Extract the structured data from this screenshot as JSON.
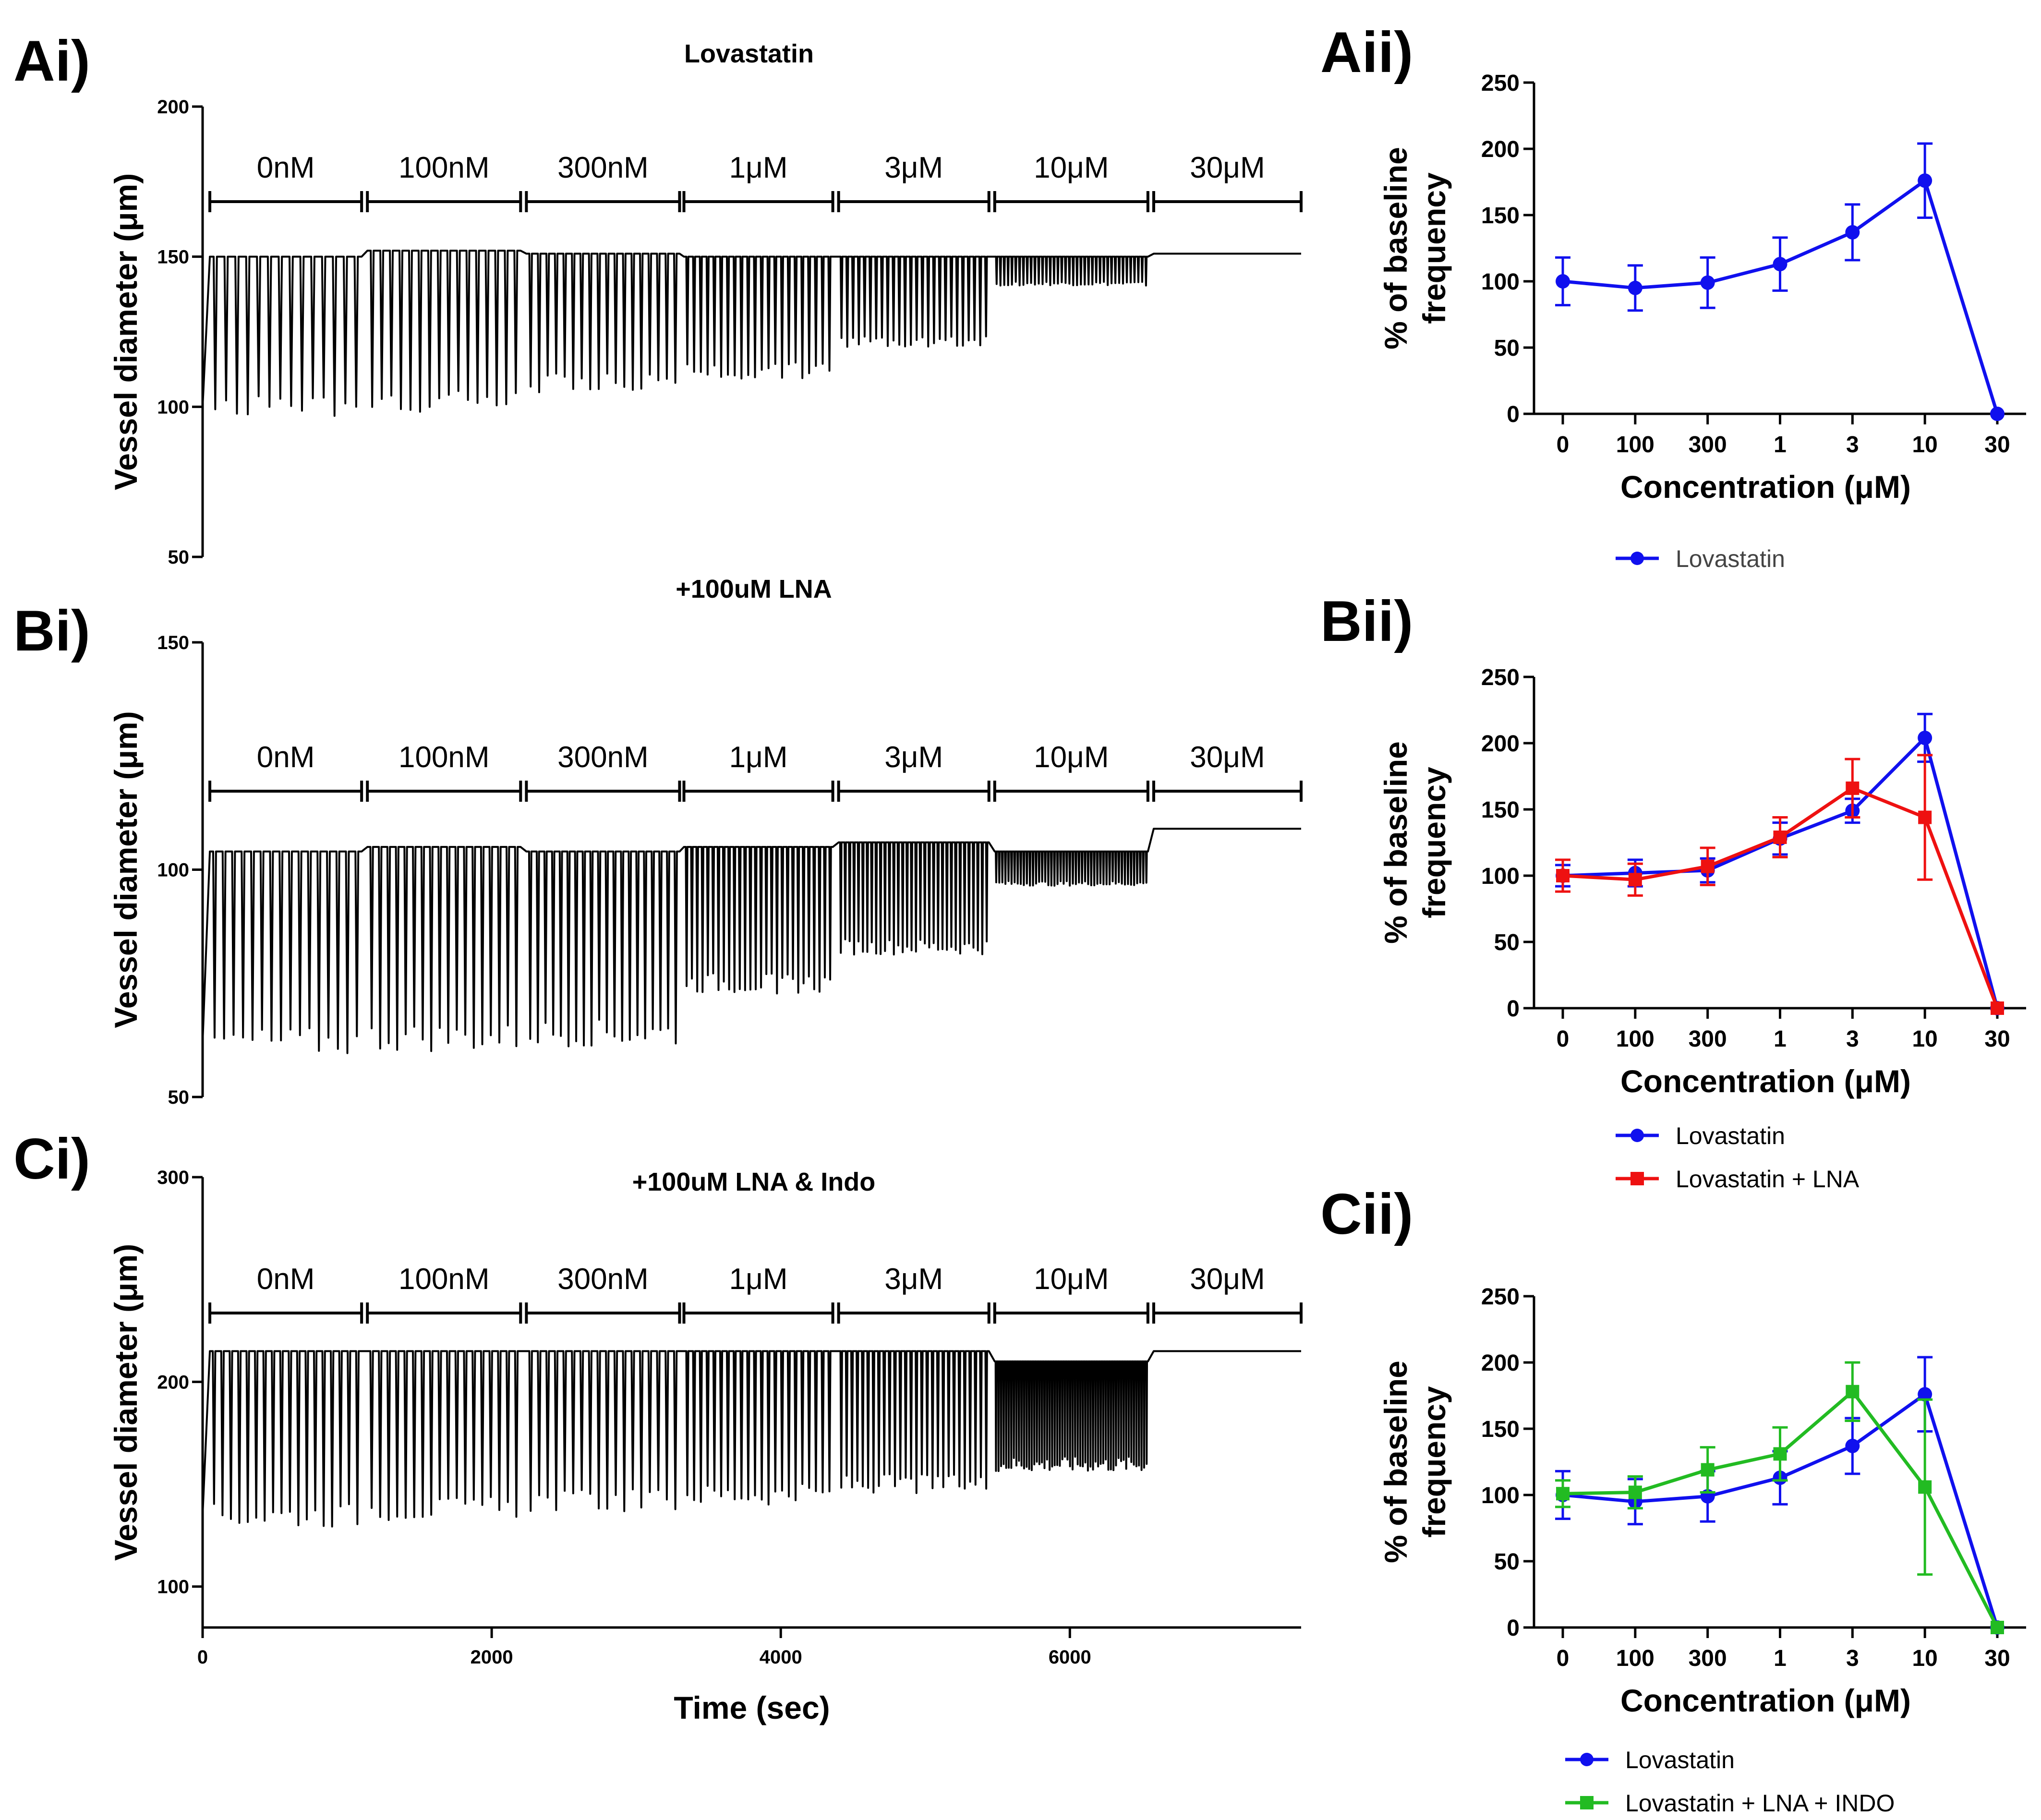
{
  "panels": {
    "ai": "Ai)",
    "aii": "Aii)",
    "bi": "Bi)",
    "bii": "Bii)",
    "ci": "Ci)",
    "cii": "Cii)"
  },
  "colors": {
    "lovastatin": "#1010ee",
    "lna": "#ee1111",
    "lna_indo": "#22bb22",
    "trace": "#000000"
  },
  "chart_data": [
    {
      "id": "Ai",
      "type": "line",
      "title": "Lovastatin",
      "xlabel": "",
      "ylabel": "Vessel diameter (μm)",
      "ylim": [
        50,
        200
      ],
      "xlim": [
        0,
        7600
      ],
      "yticks": [
        50,
        100,
        150,
        200
      ],
      "concentrations": [
        "0nM",
        "100nM",
        "300nM",
        "1μM",
        "3μM",
        "10μM",
        "30μM"
      ],
      "segments": [
        {
          "label": "0nM",
          "start": 50,
          "end": 1100,
          "peak": 150,
          "trough": 100,
          "count": 14
        },
        {
          "label": "100nM",
          "start": 1140,
          "end": 2200,
          "peak": 152,
          "trough": 102,
          "count": 16
        },
        {
          "label": "300nM",
          "start": 2240,
          "end": 3300,
          "peak": 151,
          "trough": 108,
          "count": 18
        },
        {
          "label": "1μM",
          "start": 3330,
          "end": 4360,
          "peak": 150,
          "trough": 112,
          "count": 22
        },
        {
          "label": "3μM",
          "start": 4400,
          "end": 5440,
          "peak": 150,
          "trough": 122,
          "count": 26
        },
        {
          "label": "10μM",
          "start": 5480,
          "end": 6540,
          "peak": 150,
          "trough": 141,
          "count": 40
        },
        {
          "label": "30μM",
          "start": 6580,
          "end": 7600,
          "peak": 151,
          "trough": 151,
          "count": 0
        }
      ]
    },
    {
      "id": "Bi",
      "type": "line",
      "title": "+100uM LNA",
      "xlabel": "",
      "ylabel": "Vessel diameter (μm)",
      "ylim": [
        50,
        150
      ],
      "xlim": [
        0,
        7600
      ],
      "yticks": [
        50,
        100,
        150
      ],
      "concentrations": [
        "0nM",
        "100nM",
        "300nM",
        "1μM",
        "3μM",
        "10μM",
        "30μM"
      ],
      "segments": [
        {
          "label": "0nM",
          "start": 50,
          "end": 1100,
          "peak": 104,
          "trough": 62,
          "count": 16
        },
        {
          "label": "100nM",
          "start": 1140,
          "end": 2200,
          "peak": 105,
          "trough": 63,
          "count": 18
        },
        {
          "label": "300nM",
          "start": 2240,
          "end": 3300,
          "peak": 104,
          "trough": 64,
          "count": 20
        },
        {
          "label": "1μM",
          "start": 3330,
          "end": 4360,
          "peak": 105,
          "trough": 75,
          "count": 28
        },
        {
          "label": "3μM",
          "start": 4400,
          "end": 5440,
          "peak": 106,
          "trough": 83,
          "count": 34
        },
        {
          "label": "10μM",
          "start": 5480,
          "end": 6540,
          "peak": 104,
          "trough": 97,
          "count": 50
        },
        {
          "label": "30μM",
          "start": 6580,
          "end": 7600,
          "peak": 109,
          "trough": 109,
          "count": 0
        }
      ]
    },
    {
      "id": "Ci",
      "type": "line",
      "title": "+100uM LNA & Indo",
      "xlabel": "Time (sec)",
      "ylabel": "Vessel diameter (μm)",
      "ylim": [
        80,
        300
      ],
      "xlim": [
        0,
        7600
      ],
      "yticks": [
        100,
        200,
        300
      ],
      "xticks": [
        0,
        2000,
        4000,
        6000
      ],
      "concentrations": [
        "0nM",
        "100nM",
        "300nM",
        "1μM",
        "3μM",
        "10μM",
        "30μM"
      ],
      "segments": [
        {
          "label": "0nM",
          "start": 50,
          "end": 1100,
          "peak": 215,
          "trough": 135,
          "count": 18
        },
        {
          "label": "100nM",
          "start": 1140,
          "end": 2200,
          "peak": 215,
          "trough": 138,
          "count": 18
        },
        {
          "label": "300nM",
          "start": 2240,
          "end": 3300,
          "peak": 215,
          "trough": 142,
          "count": 18
        },
        {
          "label": "1μM",
          "start": 3330,
          "end": 4360,
          "peak": 215,
          "trough": 145,
          "count": 22
        },
        {
          "label": "3μM",
          "start": 4400,
          "end": 5440,
          "peak": 215,
          "trough": 150,
          "count": 28
        },
        {
          "label": "10μM",
          "start": 5480,
          "end": 6540,
          "peak": 210,
          "trough": 160,
          "count": 60
        },
        {
          "label": "30μM",
          "start": 6580,
          "end": 7600,
          "peak": 215,
          "trough": 215,
          "count": 0
        }
      ]
    },
    {
      "id": "Aii",
      "type": "line",
      "xlabel": "Concentration (μM)",
      "ylabel_lines": [
        "% of baseline",
        "frequency"
      ],
      "categories": [
        "0",
        "100",
        "300",
        "1",
        "3",
        "10",
        "30"
      ],
      "ylim": [
        0,
        250
      ],
      "yticks": [
        0,
        50,
        100,
        150,
        200,
        250
      ],
      "series": [
        {
          "name": "Lovastatin",
          "color": "#1010ee",
          "marker": "circle",
          "values": [
            100,
            95,
            99,
            113,
            137,
            176,
            0
          ],
          "errors": [
            18,
            17,
            19,
            20,
            21,
            28,
            0
          ]
        }
      ]
    },
    {
      "id": "Bii",
      "type": "line",
      "xlabel": "Concentration (μM)",
      "ylabel_lines": [
        "% of baseline",
        "frequency"
      ],
      "categories": [
        "0",
        "100",
        "300",
        "1",
        "3",
        "10",
        "30"
      ],
      "ylim": [
        0,
        250
      ],
      "yticks": [
        0,
        50,
        100,
        150,
        200,
        250
      ],
      "series": [
        {
          "name": "Lovastatin",
          "color": "#1010ee",
          "marker": "circle",
          "values": [
            100,
            102,
            104,
            128,
            149,
            204,
            0
          ],
          "errors": [
            8,
            10,
            9,
            12,
            9,
            18,
            0
          ]
        },
        {
          "name": "Lovastatin + LNA",
          "color": "#ee1111",
          "marker": "square",
          "values": [
            100,
            97,
            107,
            129,
            166,
            144,
            0
          ],
          "errors": [
            12,
            12,
            14,
            15,
            22,
            47,
            0
          ]
        }
      ]
    },
    {
      "id": "Cii",
      "type": "line",
      "xlabel": "Concentration (μM)",
      "ylabel_lines": [
        "% of baseline",
        "frequency"
      ],
      "categories": [
        "0",
        "100",
        "300",
        "1",
        "3",
        "10",
        "30"
      ],
      "ylim": [
        0,
        250
      ],
      "yticks": [
        0,
        50,
        100,
        150,
        200,
        250
      ],
      "series": [
        {
          "name": "Lovastatin",
          "color": "#1010ee",
          "marker": "circle",
          "values": [
            100,
            95,
            99,
            113,
            137,
            176,
            0
          ],
          "errors": [
            18,
            17,
            19,
            20,
            21,
            28,
            0
          ]
        },
        {
          "name": "Lovastatin + LNA + INDO",
          "color": "#22bb22",
          "marker": "square",
          "values": [
            101,
            102,
            119,
            131,
            178,
            106,
            0
          ],
          "errors": [
            10,
            12,
            17,
            20,
            22,
            66,
            0
          ]
        }
      ]
    }
  ]
}
